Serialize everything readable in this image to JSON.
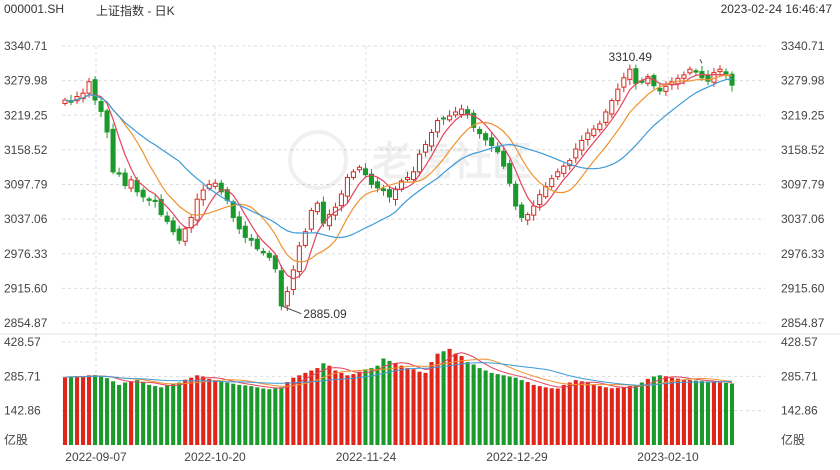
{
  "header": {
    "symbol": "000001.SH",
    "title": "上证指数 - 日K",
    "timestamp": "2023-02-24 16:46:47"
  },
  "watermark": "老虎社区",
  "volume_unit": "亿股",
  "colors": {
    "up": "#e0261a",
    "down": "#1b9a2c",
    "ma5": "#e2445c",
    "ma10": "#f0922f",
    "ma20": "#3c9ad8",
    "grid": "#dcdcdc"
  },
  "chart_data": {
    "type": "candlestick",
    "title": "上证指数 - 日K",
    "price_ticks": [
      "3340.71",
      "3279.98",
      "3219.25",
      "3158.52",
      "3097.79",
      "3037.06",
      "2976.33",
      "2915.60",
      "2854.87"
    ],
    "price_range": [
      2854.87,
      3340.71
    ],
    "volume_ticks": [
      "428.57",
      "285.71",
      "142.86"
    ],
    "volume_range": [
      0,
      428.57
    ],
    "date_labels": [
      "2022-09-07",
      "2022-10-20",
      "2022-11-24",
      "2022-12-29",
      "2023-02-10"
    ],
    "annotations": [
      {
        "label": "3310.49",
        "value": 3310.49,
        "index": 106
      },
      {
        "label": "2885.09",
        "value": 2885.09,
        "index": 36
      }
    ],
    "close": [
      3246,
      3242,
      3252,
      3258,
      3278,
      3246,
      3226,
      3190,
      3120,
      3116,
      3096,
      3106,
      3085,
      3076,
      3070,
      3068,
      3045,
      3033,
      3015,
      3000,
      3020,
      3040,
      3072,
      3088,
      3098,
      3100,
      3085,
      3070,
      3040,
      3020,
      3005,
      3000,
      2985,
      2978,
      2970,
      2950,
      2885,
      2910,
      2948,
      2990,
      3015,
      3052,
      3065,
      3030,
      3045,
      3058,
      3081,
      3110,
      3120,
      3128,
      3115,
      3098,
      3092,
      3087,
      3076,
      3090,
      3104,
      3110,
      3120,
      3151,
      3168,
      3189,
      3210,
      3213,
      3218,
      3225,
      3230,
      3220,
      3198,
      3187,
      3176,
      3166,
      3155,
      3130,
      3100,
      3060,
      3040,
      3045,
      3060,
      3080,
      3094,
      3108,
      3120,
      3130,
      3140,
      3160,
      3175,
      3188,
      3195,
      3204,
      3225,
      3245,
      3265,
      3285,
      3300,
      3275,
      3277,
      3287,
      3271,
      3262,
      3270,
      3278,
      3284,
      3290,
      3300,
      3295,
      3285,
      3279,
      3294,
      3300,
      3292,
      3272
    ],
    "volume": [
      282,
      285,
      286,
      284,
      290,
      291,
      285,
      278,
      265,
      250,
      260,
      265,
      270,
      260,
      250,
      245,
      240,
      248,
      255,
      260,
      272,
      280,
      290,
      285,
      275,
      270,
      265,
      260,
      255,
      250,
      248,
      245,
      240,
      235,
      232,
      236,
      240,
      262,
      280,
      290,
      300,
      310,
      320,
      340,
      330,
      310,
      300,
      290,
      295,
      305,
      315,
      320,
      330,
      360,
      350,
      340,
      330,
      320,
      315,
      305,
      300,
      345,
      380,
      390,
      400,
      380,
      370,
      345,
      335,
      320,
      310,
      300,
      295,
      290,
      285,
      280,
      270,
      262,
      250,
      245,
      240,
      236,
      235,
      250,
      260,
      270,
      265,
      260,
      252,
      245,
      240,
      236,
      238,
      240,
      245,
      248,
      260,
      275,
      285,
      290,
      286,
      280,
      276,
      272,
      270,
      268,
      266,
      264,
      262,
      260,
      258,
      256
    ]
  }
}
